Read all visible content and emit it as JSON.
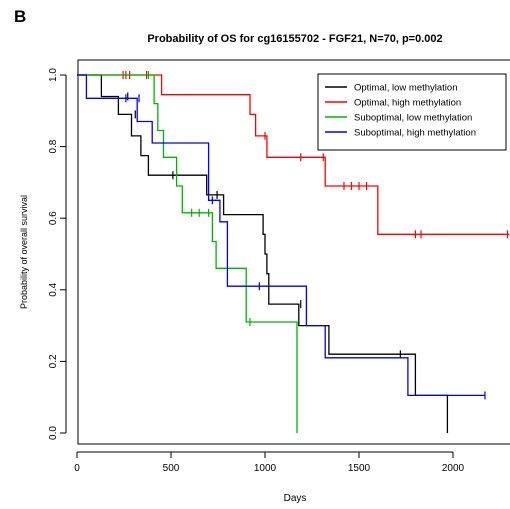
{
  "panel_label": "B",
  "chart_data": {
    "type": "line",
    "step": true,
    "title": "Probability of OS for cg16155702 - FGF21, N=70, p=0.002",
    "xlabel": "Days",
    "ylabel": "Probability of overall survival",
    "xlim": [
      0,
      2300
    ],
    "ylim": [
      0,
      1.0
    ],
    "xticks": [
      0,
      500,
      1000,
      1500,
      2000
    ],
    "xtick_labels": [
      "0",
      "500",
      "1000",
      "1500",
      "2000"
    ],
    "yticks": [
      0.0,
      0.2,
      0.4,
      0.6,
      0.8,
      1.0
    ],
    "ytick_labels": [
      "0.0",
      "0.2",
      "0.4",
      "0.6",
      "0.8",
      "1.0"
    ],
    "grid": false,
    "legend_position": "top-right",
    "series": [
      {
        "name": "Optimal, low methylation",
        "color": "#000000",
        "points": [
          [
            0,
            1.0
          ],
          [
            130,
            1.0
          ],
          [
            130,
            0.94
          ],
          [
            220,
            0.94
          ],
          [
            220,
            0.89
          ],
          [
            290,
            0.89
          ],
          [
            290,
            0.83
          ],
          [
            340,
            0.83
          ],
          [
            340,
            0.775
          ],
          [
            380,
            0.775
          ],
          [
            380,
            0.72
          ],
          [
            560,
            0.72
          ],
          [
            560,
            0.72
          ],
          [
            690,
            0.72
          ],
          [
            690,
            0.665
          ],
          [
            780,
            0.665
          ],
          [
            780,
            0.61
          ],
          [
            990,
            0.61
          ],
          [
            990,
            0.555
          ],
          [
            1000,
            0.555
          ],
          [
            1000,
            0.5
          ],
          [
            1010,
            0.5
          ],
          [
            1010,
            0.445
          ],
          [
            1020,
            0.445
          ],
          [
            1020,
            0.36
          ],
          [
            1180,
            0.36
          ],
          [
            1180,
            0.3
          ],
          [
            1340,
            0.3
          ],
          [
            1340,
            0.22
          ],
          [
            1800,
            0.22
          ],
          [
            1800,
            0.105
          ],
          [
            1970,
            0.105
          ],
          [
            1970,
            0.0
          ]
        ],
        "censors": [
          [
            270,
            0.94
          ],
          [
            310,
            0.89
          ],
          [
            510,
            0.72
          ],
          [
            745,
            0.665
          ],
          [
            1190,
            0.36
          ],
          [
            1720,
            0.22
          ]
        ]
      },
      {
        "name": "Optimal, high methylation",
        "color": "#ff0000",
        "points": [
          [
            0,
            1.0
          ],
          [
            450,
            1.0
          ],
          [
            450,
            0.945
          ],
          [
            920,
            0.945
          ],
          [
            920,
            0.89
          ],
          [
            950,
            0.89
          ],
          [
            950,
            0.83
          ],
          [
            1010,
            0.83
          ],
          [
            1010,
            0.77
          ],
          [
            1320,
            0.77
          ],
          [
            1320,
            0.69
          ],
          [
            1600,
            0.69
          ],
          [
            1600,
            0.555
          ],
          [
            2300,
            0.555
          ]
        ],
        "censors": [
          [
            245,
            1.0
          ],
          [
            260,
            1.0
          ],
          [
            280,
            1.0
          ],
          [
            370,
            1.0
          ],
          [
            1000,
            0.83
          ],
          [
            1190,
            0.77
          ],
          [
            1310,
            0.77
          ],
          [
            1420,
            0.69
          ],
          [
            1460,
            0.69
          ],
          [
            1500,
            0.69
          ],
          [
            1540,
            0.69
          ],
          [
            1800,
            0.555
          ],
          [
            1830,
            0.555
          ],
          [
            2290,
            0.555
          ]
        ]
      },
      {
        "name": "Suboptimal, low methylation",
        "color": "#00b400",
        "points": [
          [
            0,
            1.0
          ],
          [
            410,
            1.0
          ],
          [
            410,
            0.92
          ],
          [
            430,
            0.92
          ],
          [
            430,
            0.845
          ],
          [
            460,
            0.845
          ],
          [
            460,
            0.77
          ],
          [
            530,
            0.77
          ],
          [
            530,
            0.69
          ],
          [
            560,
            0.69
          ],
          [
            560,
            0.615
          ],
          [
            720,
            0.615
          ],
          [
            720,
            0.535
          ],
          [
            740,
            0.535
          ],
          [
            740,
            0.46
          ],
          [
            900,
            0.46
          ],
          [
            900,
            0.31
          ],
          [
            1170,
            0.31
          ],
          [
            1170,
            0.0
          ]
        ],
        "censors": [
          [
            380,
            1.0
          ],
          [
            610,
            0.615
          ],
          [
            650,
            0.615
          ],
          [
            700,
            0.615
          ],
          [
            920,
            0.31
          ]
        ]
      },
      {
        "name": "Suboptimal, high methylation",
        "color": "#0000ff",
        "points": [
          [
            0,
            1.0
          ],
          [
            50,
            1.0
          ],
          [
            50,
            0.935
          ],
          [
            320,
            0.935
          ],
          [
            320,
            0.87
          ],
          [
            400,
            0.87
          ],
          [
            400,
            0.81
          ],
          [
            700,
            0.81
          ],
          [
            700,
            0.65
          ],
          [
            760,
            0.65
          ],
          [
            760,
            0.59
          ],
          [
            800,
            0.59
          ],
          [
            800,
            0.41
          ],
          [
            1220,
            0.41
          ],
          [
            1220,
            0.3
          ],
          [
            1320,
            0.3
          ],
          [
            1320,
            0.21
          ],
          [
            1760,
            0.21
          ],
          [
            1760,
            0.105
          ],
          [
            2170,
            0.105
          ]
        ],
        "censors": [
          [
            260,
            0.935
          ],
          [
            330,
            0.935
          ],
          [
            720,
            0.65
          ],
          [
            970,
            0.41
          ],
          [
            2170,
            0.105
          ]
        ]
      }
    ]
  }
}
